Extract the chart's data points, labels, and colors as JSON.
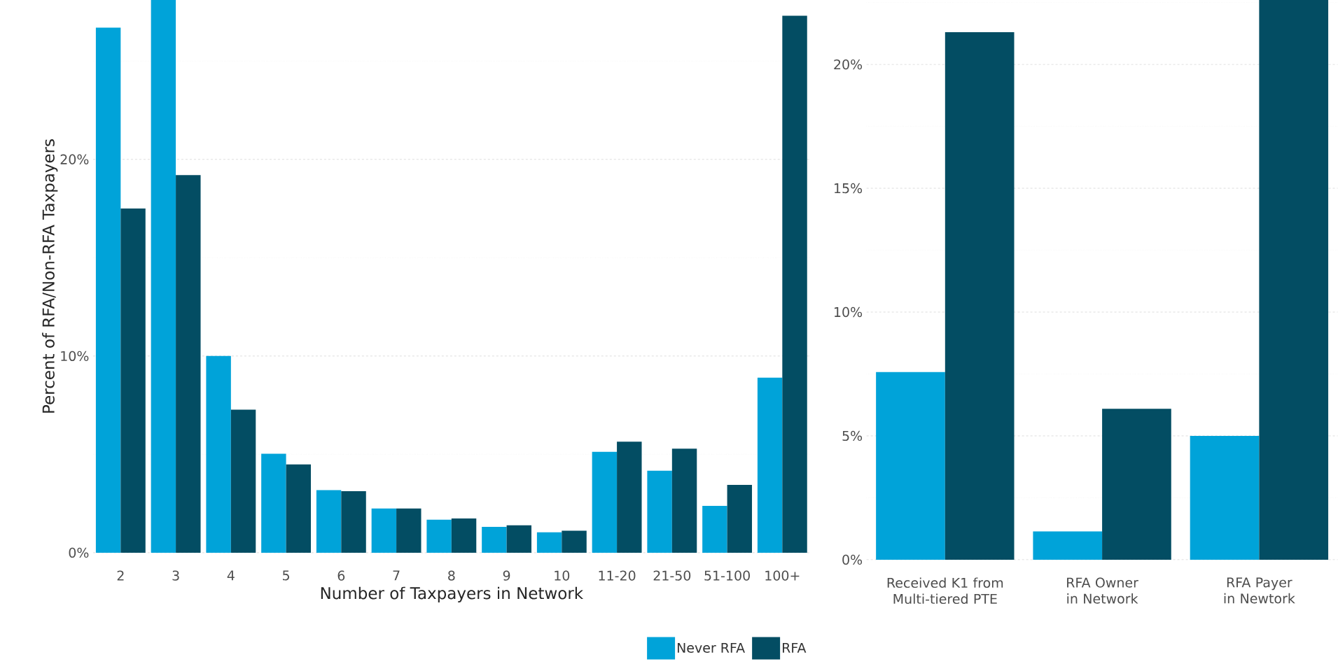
{
  "chart_data": [
    {
      "type": "bar",
      "xlabel": "Number of Taxpayers in Network",
      "ylabel": "Percent of RFA/Non-RFA Taxpayers",
      "categories": [
        "2",
        "3",
        "4",
        "5",
        "6",
        "7",
        "8",
        "9",
        "10",
        "11-20",
        "21-50",
        "51-100",
        "100+"
      ],
      "series": [
        {
          "name": "Never RFA",
          "color": "#00a3d9",
          "values": [
            26.7,
            28.1,
            10.0,
            5.03,
            3.18,
            2.25,
            1.68,
            1.31,
            1.04,
            5.13,
            4.17,
            2.38,
            8.9
          ]
        },
        {
          "name": "RFA",
          "color": "#034d63",
          "values": [
            17.5,
            19.2,
            7.27,
            4.49,
            3.13,
            2.25,
            1.74,
            1.39,
            1.12,
            5.64,
            5.29,
            3.45,
            27.3
          ]
        }
      ],
      "ylim": [
        0,
        28.1
      ],
      "yticks": [
        {
          "value": 0,
          "label": "0%"
        },
        {
          "value": 5,
          "label": null
        },
        {
          "value": 10,
          "label": "10%"
        },
        {
          "value": 15,
          "label": null
        },
        {
          "value": 20,
          "label": "20%"
        },
        {
          "value": 25,
          "label": null
        }
      ],
      "grid": "y",
      "legend": "bottom right"
    },
    {
      "type": "bar",
      "categories": [
        "Received K1 from Multi-tiered PTE",
        "RFA Owner in Network",
        "RFA Payer in Newtork"
      ],
      "series": [
        {
          "color": "#00a3d9",
          "values": [
            7.58,
            1.14,
            5.0
          ]
        },
        {
          "color": "#034d63",
          "values": [
            21.3,
            6.09,
            22.6
          ]
        }
      ],
      "ylim": [
        0,
        22.6
      ],
      "yticks": [
        {
          "value": 0,
          "label": "0%"
        },
        {
          "value": 2.5,
          "label": null
        },
        {
          "value": 5,
          "label": "5%"
        },
        {
          "value": 7.5,
          "label": null
        },
        {
          "value": 10,
          "label": "10%"
        },
        {
          "value": 12.5,
          "label": null
        },
        {
          "value": 15,
          "label": "15%"
        },
        {
          "value": 17.5,
          "label": null
        },
        {
          "value": 20,
          "label": "20%"
        },
        {
          "value": 22.5,
          "label": null
        }
      ],
      "grid": "y"
    }
  ]
}
